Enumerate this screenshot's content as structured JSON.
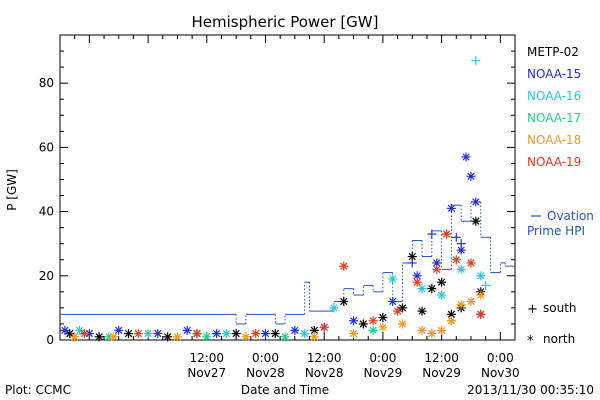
{
  "chart_data": {
    "type": "scatter",
    "title": "Hemispheric Power [GW]",
    "xlabel": "Date and Time",
    "ylabel": "P [GW]",
    "ylim": [
      0,
      95
    ],
    "xlim": [
      "2013-11-26 06:00",
      "2013-11-30 03:00"
    ],
    "x_ticks": [
      {
        "time": "12:00",
        "date": "Nov27"
      },
      {
        "time": "0:00",
        "date": "Nov28"
      },
      {
        "time": "12:00",
        "date": "Nov28"
      },
      {
        "time": "0:00",
        "date": "Nov29"
      },
      {
        "time": "12:00",
        "date": "Nov29"
      },
      {
        "time": "0:00",
        "date": "Nov30"
      }
    ],
    "y_ticks": [
      "0",
      "20",
      "40",
      "60",
      "80"
    ],
    "legend": [
      {
        "name": "METP-02",
        "color": "#000000"
      },
      {
        "name": "NOAA-15",
        "color": "#1f2fd8"
      },
      {
        "name": "NOAA-16",
        "color": "#28c8e0"
      },
      {
        "name": "NOAA-17",
        "color": "#22d088"
      },
      {
        "name": "NOAA-18",
        "color": "#f09a20"
      },
      {
        "name": "NOAA-19",
        "color": "#e83a18"
      }
    ],
    "ovation_label_line1": "Ovation",
    "ovation_label_line2": "Prime HPI",
    "ovation_color": "#2255cc",
    "marker_south": "south",
    "marker_north": "north",
    "ovation_hpi": [
      [
        "2013-11-26 06:00",
        8
      ],
      [
        "2013-11-27 18:00",
        8
      ],
      [
        "2013-11-27 18:00",
        5
      ],
      [
        "2013-11-27 20:00",
        5
      ],
      [
        "2013-11-27 20:00",
        8
      ],
      [
        "2013-11-28 02:00",
        8
      ],
      [
        "2013-11-28 02:00",
        5
      ],
      [
        "2013-11-28 04:00",
        5
      ],
      [
        "2013-11-28 04:00",
        8
      ],
      [
        "2013-11-28 08:00",
        8
      ],
      [
        "2013-11-28 08:00",
        18
      ],
      [
        "2013-11-28 09:00",
        18
      ],
      [
        "2013-11-28 09:00",
        9
      ],
      [
        "2013-11-28 14:00",
        9
      ],
      [
        "2013-11-28 14:00",
        12
      ],
      [
        "2013-11-28 16:00",
        12
      ],
      [
        "2013-11-28 16:00",
        16
      ],
      [
        "2013-11-28 18:00",
        16
      ],
      [
        "2013-11-28 18:00",
        14
      ],
      [
        "2013-11-28 20:00",
        14
      ],
      [
        "2013-11-28 20:00",
        17
      ],
      [
        "2013-11-28 22:00",
        17
      ],
      [
        "2013-11-28 22:00",
        15
      ],
      [
        "2013-11-29 00:00",
        15
      ],
      [
        "2013-11-29 00:00",
        21
      ],
      [
        "2013-11-29 02:00",
        21
      ],
      [
        "2013-11-29 02:00",
        12
      ],
      [
        "2013-11-29 04:00",
        12
      ],
      [
        "2013-11-29 04:00",
        24
      ],
      [
        "2013-11-29 06:00",
        24
      ],
      [
        "2013-11-29 06:00",
        31
      ],
      [
        "2013-11-29 08:00",
        31
      ],
      [
        "2013-11-29 08:00",
        26
      ],
      [
        "2013-11-29 10:00",
        26
      ],
      [
        "2013-11-29 10:00",
        34
      ],
      [
        "2013-11-29 12:00",
        34
      ],
      [
        "2013-11-29 12:00",
        22
      ],
      [
        "2013-11-29 14:00",
        22
      ],
      [
        "2013-11-29 14:00",
        42
      ],
      [
        "2013-11-29 16:00",
        42
      ],
      [
        "2013-11-29 16:00",
        37
      ],
      [
        "2013-11-29 18:00",
        37
      ],
      [
        "2013-11-29 18:00",
        43
      ],
      [
        "2013-11-29 20:00",
        43
      ],
      [
        "2013-11-29 20:00",
        32
      ],
      [
        "2013-11-29 22:00",
        32
      ],
      [
        "2013-11-29 22:00",
        21
      ],
      [
        "2013-11-30 00:00",
        21
      ],
      [
        "2013-11-30 00:00",
        24
      ],
      [
        "2013-11-30 01:00",
        24
      ],
      [
        "2013-11-30 01:00",
        23
      ],
      [
        "2013-11-30 03:00",
        23
      ]
    ],
    "series": [
      {
        "satellite": "METP-02",
        "color": "#000000",
        "marker": "north",
        "points": [
          [
            "2013-11-26 08:00",
            2
          ],
          [
            "2013-11-26 14:00",
            1
          ],
          [
            "2013-11-26 20:00",
            2
          ],
          [
            "2013-11-27 04:00",
            1
          ],
          [
            "2013-11-27 10:00",
            2
          ],
          [
            "2013-11-27 18:00",
            2
          ],
          [
            "2013-11-28 02:00",
            2
          ],
          [
            "2013-11-28 10:00",
            3
          ],
          [
            "2013-11-28 16:00",
            12
          ],
          [
            "2013-11-28 20:00",
            5
          ],
          [
            "2013-11-29 00:00",
            7
          ],
          [
            "2013-11-29 04:00",
            10
          ],
          [
            "2013-11-29 06:00",
            26
          ],
          [
            "2013-11-29 08:00",
            9
          ],
          [
            "2013-11-29 10:00",
            16
          ],
          [
            "2013-11-29 12:00",
            18
          ],
          [
            "2013-11-29 14:00",
            8
          ],
          [
            "2013-11-29 16:00",
            10
          ],
          [
            "2013-11-29 19:00",
            37
          ],
          [
            "2013-11-29 20:00",
            15
          ]
        ]
      },
      {
        "satellite": "NOAA-15",
        "color": "#1f2fd8",
        "marker": "north",
        "points": [
          [
            "2013-11-26 07:00",
            3
          ],
          [
            "2013-11-26 12:00",
            2
          ],
          [
            "2013-11-26 18:00",
            3
          ],
          [
            "2013-11-27 02:00",
            2
          ],
          [
            "2013-11-27 08:00",
            3
          ],
          [
            "2013-11-27 14:00",
            2
          ],
          [
            "2013-11-28 00:00",
            2
          ],
          [
            "2013-11-28 06:00",
            3
          ],
          [
            "2013-11-28 12:00",
            4
          ],
          [
            "2013-11-28 18:00",
            6
          ],
          [
            "2013-11-29 02:00",
            12
          ],
          [
            "2013-11-29 07:00",
            20
          ],
          [
            "2013-11-29 11:00",
            24
          ],
          [
            "2013-11-29 14:00",
            41
          ],
          [
            "2013-11-29 16:00",
            28
          ],
          [
            "2013-11-29 17:00",
            57
          ],
          [
            "2013-11-29 18:00",
            51
          ],
          [
            "2013-11-29 19:00",
            43
          ],
          [
            "2013-11-29 20:00",
            8
          ]
        ]
      },
      {
        "satellite": "NOAA-15",
        "color": "#1f2fd8",
        "marker": "south",
        "points": [
          [
            "2013-11-29 06:00",
            24
          ],
          [
            "2013-11-29 10:00",
            33
          ],
          [
            "2013-11-29 13:00",
            33
          ],
          [
            "2013-11-29 15:00",
            32
          ],
          [
            "2013-11-29 16:00",
            30
          ]
        ]
      },
      {
        "satellite": "NOAA-16",
        "color": "#28c8e0",
        "marker": "north",
        "points": [
          [
            "2013-11-26 10:00",
            3
          ],
          [
            "2013-11-27 00:00",
            2
          ],
          [
            "2013-11-27 16:00",
            2
          ],
          [
            "2013-11-28 08:00",
            2
          ],
          [
            "2013-11-28 14:00",
            10
          ],
          [
            "2013-11-29 02:00",
            19
          ],
          [
            "2013-11-29 08:00",
            16
          ],
          [
            "2013-11-29 12:00",
            14
          ],
          [
            "2013-11-29 16:00",
            22
          ],
          [
            "2013-11-29 20:00",
            20
          ]
        ]
      },
      {
        "satellite": "NOAA-16",
        "color": "#28c8e0",
        "marker": "south",
        "points": [
          [
            "2013-11-29 19:00",
            87
          ],
          [
            "2013-11-29 21:00",
            17
          ]
        ]
      },
      {
        "satellite": "NOAA-17",
        "color": "#22d088",
        "marker": "north",
        "points": [
          [
            "2013-11-26 16:00",
            1
          ],
          [
            "2013-11-27 12:00",
            1
          ],
          [
            "2013-11-28 04:00",
            1
          ],
          [
            "2013-11-28 22:00",
            3
          ],
          [
            "2013-11-29 14:00",
            6
          ]
        ]
      },
      {
        "satellite": "NOAA-18",
        "color": "#f09a20",
        "marker": "north",
        "points": [
          [
            "2013-11-26 09:00",
            1
          ],
          [
            "2013-11-26 17:00",
            1
          ],
          [
            "2013-11-27 06:00",
            1
          ],
          [
            "2013-11-27 20:00",
            1
          ],
          [
            "2013-11-28 10:00",
            1
          ],
          [
            "2013-11-28 18:00",
            2
          ],
          [
            "2013-11-29 00:00",
            4
          ],
          [
            "2013-11-29 04:00",
            5
          ],
          [
            "2013-11-29 08:00",
            3
          ],
          [
            "2013-11-29 10:00",
            2
          ],
          [
            "2013-11-29 12:00",
            3
          ],
          [
            "2013-11-29 14:00",
            6
          ],
          [
            "2013-11-29 16:00",
            11
          ],
          [
            "2013-11-29 18:00",
            12
          ],
          [
            "2013-11-29 20:00",
            14
          ]
        ]
      },
      {
        "satellite": "NOAA-19",
        "color": "#e83a18",
        "marker": "north",
        "points": [
          [
            "2013-11-26 11:00",
            2
          ],
          [
            "2013-11-26 22:00",
            2
          ],
          [
            "2013-11-27 10:00",
            2
          ],
          [
            "2013-11-27 22:00",
            2
          ],
          [
            "2013-11-28 12:00",
            4
          ],
          [
            "2013-11-28 16:00",
            23
          ],
          [
            "2013-11-28 22:00",
            6
          ],
          [
            "2013-11-29 03:00",
            9
          ],
          [
            "2013-11-29 07:00",
            18
          ],
          [
            "2013-11-29 11:00",
            22
          ],
          [
            "2013-11-29 13:00",
            33
          ],
          [
            "2013-11-29 15:00",
            25
          ],
          [
            "2013-11-29 18:00",
            24
          ],
          [
            "2013-11-29 20:00",
            8
          ]
        ]
      }
    ]
  },
  "footer": {
    "plot_credit": "Plot: CCMC",
    "timestamp": "2013/11/30 00:35:10"
  }
}
